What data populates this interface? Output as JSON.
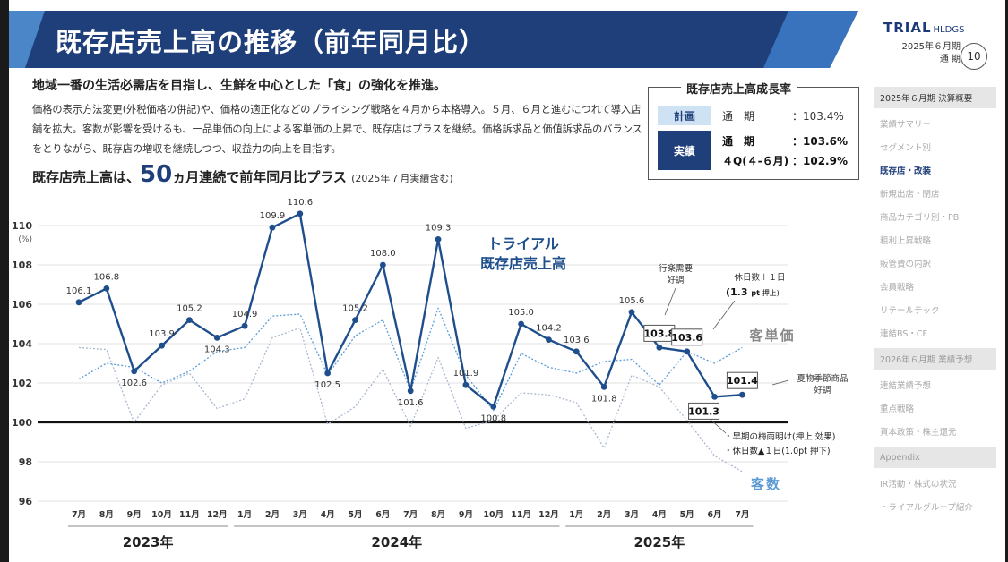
{
  "header": {
    "title": "既存店売上高の推移（前年同月比）",
    "logo_brand": "TRIAL",
    "logo_sub": "HLDGS",
    "period_line1": "2025年６月期",
    "period_line2": "通 期",
    "page_number": "10"
  },
  "text": {
    "headline": "地域一番の生活必需店を目指し、生鮮を中心とした「食」の強化を推進。",
    "body": "価格の表示方法変更(外税価格の併記)や、価格の適正化などのプライシング戦略を４月から本格導入。５月、６月と進むにつれて導入店舗を拡大。客数が影響を受けるも、一品単価の向上による客単価の上昇で、既存店はプラスを継続。価格訴求品と価値訴求品のバランスをとりながら、既存店の増収を継続しつつ、収益力の向上を目指す。",
    "sub_pre": "既存店売上高は、",
    "sub_big": "50",
    "sub_mid": "ヵ月連続で前年同月比プラス",
    "sub_note": "(2025年７月実績含む)"
  },
  "growth_box": {
    "title": "既存店売上高成長率",
    "plan_label": "計画",
    "plan_period": "通　期",
    "plan_value": "：103.4%",
    "actual_label": "実績",
    "actual_period": "通　期",
    "actual_value": "：103.6%",
    "q4_period": "４Q(４-６月)",
    "q4_value": "：102.9%"
  },
  "sidebar": {
    "section1": "2025年６月期 決算概要",
    "items1": [
      "業績サマリー",
      "セグメント別",
      "既存店・改装",
      "新規出店・閉店",
      "商品カテゴリ別・PB",
      "粗利上昇戦略",
      "販管費の内訳",
      "会員戦略",
      "リテールテック",
      "連結BS・CF"
    ],
    "current_index": 2,
    "section2": "2026年６月期 業績予想",
    "items2": [
      "連結業績予想",
      "重点戦略",
      "資本政策・株主還元"
    ],
    "section3": "Appendix",
    "items3": [
      "IR活動・株式の状況",
      "トライアルグループ紹介"
    ]
  },
  "colors": {
    "title_band": "#1f3f7a",
    "title_accent": "#4a86c8",
    "sales_line": "#1f4e8c",
    "price_line": "#5b9bd5",
    "customers_line": "#a8b8d0",
    "baseline": "#111111"
  },
  "chart_data": {
    "type": "line",
    "x": [
      "2023-07",
      "2023-08",
      "2023-09",
      "2023-10",
      "2023-11",
      "2023-12",
      "2024-01",
      "2024-02",
      "2024-03",
      "2024-04",
      "2024-05",
      "2024-06",
      "2024-07",
      "2024-08",
      "2024-09",
      "2024-10",
      "2024-11",
      "2024-12",
      "2025-01",
      "2025-02",
      "2025-03",
      "2025-04",
      "2025-05",
      "2025-06",
      "2025-07"
    ],
    "tick_labels": [
      "7月",
      "8月",
      "9月",
      "10月",
      "11月",
      "12月",
      "1月",
      "2月",
      "3月",
      "4月",
      "5月",
      "6月",
      "7月",
      "8月",
      "9月",
      "10月",
      "11月",
      "12月",
      "1月",
      "2月",
      "3月",
      "4月",
      "5月",
      "6月",
      "7月"
    ],
    "year_labels": [
      {
        "label": "2023年",
        "from": 0,
        "to": 5
      },
      {
        "label": "2024年",
        "from": 6,
        "to": 17
      },
      {
        "label": "2025年",
        "from": 18,
        "to": 24
      }
    ],
    "ylim": [
      96,
      110
    ],
    "yticks": [
      96,
      98,
      100,
      102,
      104,
      106,
      108,
      110
    ],
    "yunit": "(%)",
    "baseline": 100,
    "grid": true,
    "series": [
      {
        "name": "トライアル既存店売上高",
        "values": [
          106.1,
          106.8,
          102.6,
          103.9,
          105.2,
          104.3,
          104.9,
          109.9,
          110.6,
          102.5,
          105.2,
          108.0,
          101.6,
          109.3,
          101.9,
          100.8,
          105.0,
          104.2,
          103.6,
          101.8,
          105.6,
          103.8,
          103.6,
          101.3,
          101.4
        ]
      },
      {
        "name": "客単価",
        "values": [
          102.2,
          103.0,
          102.8,
          102.0,
          102.6,
          103.6,
          103.8,
          105.4,
          105.5,
          102.4,
          104.4,
          105.2,
          101.6,
          105.8,
          102.4,
          100.6,
          103.5,
          102.8,
          102.5,
          103.1,
          103.2,
          101.9,
          103.6,
          103.0,
          103.8
        ]
      },
      {
        "name": "客数",
        "values": [
          103.8,
          103.7,
          100.0,
          101.9,
          102.5,
          100.7,
          101.2,
          104.3,
          104.8,
          99.9,
          100.8,
          102.7,
          99.8,
          103.3,
          99.7,
          100.1,
          101.5,
          101.4,
          101.0,
          98.7,
          102.4,
          101.8,
          100.1,
          98.3,
          97.5
        ]
      }
    ],
    "boxed_labels": [
      "103.8",
      "103.6",
      "101.3",
      "101.4"
    ],
    "annotations": {
      "gyoraku": "行楽需要\n好調",
      "holiday_plus": "休日数＋１日",
      "holiday_plus_val": "(1.3",
      "holiday_plus_unit": "pt",
      "holiday_plus_push": "押上)",
      "summer": "夏物季節商品\n好調",
      "rainy": "・早期の梅雨明け(押上 効果)",
      "holiday_minus": "・休日数▲１日(1.0pt 押下)"
    }
  }
}
